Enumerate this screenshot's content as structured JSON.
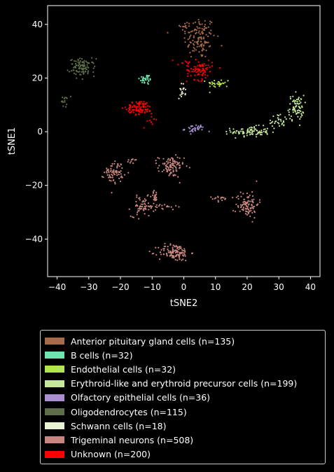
{
  "chart_data": {
    "type": "scatter",
    "xlabel": "tSNE2",
    "ylabel": "tSNE1",
    "xlim": [
      -43,
      43
    ],
    "ylim": [
      -54,
      47
    ],
    "xticks": [
      -40,
      -30,
      -20,
      -10,
      0,
      10,
      20,
      30,
      40
    ],
    "yticks": [
      -40,
      -20,
      0,
      20,
      40
    ],
    "legend_position": "below",
    "series": [
      {
        "name": "Anterior pituitary gland cells (n=135)",
        "color": "#a86b4a",
        "n": 135,
        "clusters": [
          {
            "x": 5,
            "y": 35,
            "sx": 2.5,
            "sy": 4.0,
            "n": 125
          },
          {
            "x": 0,
            "y": 39,
            "sx": 0.7,
            "sy": 1.2,
            "n": 10
          }
        ]
      },
      {
        "name": "B cells (n=32)",
        "color": "#6fe6b0",
        "n": 32,
        "clusters": [
          {
            "x": -12,
            "y": 19.5,
            "sx": 1.0,
            "sy": 1.0,
            "n": 32
          }
        ]
      },
      {
        "name": "Endothelial cells (n=32)",
        "color": "#b3e64c",
        "n": 32,
        "clusters": [
          {
            "x": 11,
            "y": 18,
            "sx": 1.8,
            "sy": 0.8,
            "n": 32
          }
        ]
      },
      {
        "name": "Erythroid-like and erythroid precursor cells (n=199)",
        "color": "#c5e89a",
        "n": 199,
        "clusters": [
          {
            "x": 21,
            "y": 0,
            "sx": 3.0,
            "sy": 1.0,
            "n": 95
          },
          {
            "x": 30,
            "y": 4,
            "sx": 2.0,
            "sy": 1.2,
            "n": 30
          },
          {
            "x": 35.5,
            "y": 9,
            "sx": 1.2,
            "sy": 2.3,
            "n": 74
          }
        ]
      },
      {
        "name": "Olfactory epithelial cells (n=36)",
        "color": "#a98fcf",
        "n": 36,
        "clusters": [
          {
            "x": 3.5,
            "y": 1,
            "sx": 1.6,
            "sy": 0.8,
            "n": 36
          }
        ]
      },
      {
        "name": "Oligodendrocytes (n=115)",
        "color": "#5e6e48",
        "n": 115,
        "clusters": [
          {
            "x": -32,
            "y": 24,
            "sx": 2.0,
            "sy": 1.6,
            "n": 100
          },
          {
            "x": -37.5,
            "y": 11.5,
            "sx": 0.6,
            "sy": 1.2,
            "n": 15
          }
        ]
      },
      {
        "name": "Schwann cells (n=18)",
        "color": "#e8f3d0",
        "n": 18,
        "clusters": [
          {
            "x": -0.5,
            "y": 15,
            "sx": 0.5,
            "sy": 1.4,
            "n": 18
          }
        ]
      },
      {
        "name": "Trigeminal neurons (n=508)",
        "color": "#c98680",
        "n": 508,
        "clusters": [
          {
            "x": -22,
            "y": -15,
            "sx": 1.5,
            "sy": 2.0,
            "n": 70
          },
          {
            "x": -4,
            "y": -13,
            "sx": 2.0,
            "sy": 2.0,
            "n": 95
          },
          {
            "x": -13,
            "y": -28,
            "sx": 1.8,
            "sy": 1.8,
            "n": 65
          },
          {
            "x": -6,
            "y": -28,
            "sx": 2.0,
            "sy": 0.6,
            "n": 18
          },
          {
            "x": 20,
            "y": -27,
            "sx": 1.8,
            "sy": 2.5,
            "n": 95
          },
          {
            "x": 12,
            "y": -25,
            "sx": 1.5,
            "sy": 0.5,
            "n": 15
          },
          {
            "x": -3,
            "y": -45,
            "sx": 2.5,
            "sy": 1.6,
            "n": 120
          },
          {
            "x": -16,
            "y": -11,
            "sx": 1.0,
            "sy": 0.6,
            "n": 10
          },
          {
            "x": -9,
            "y": -24,
            "sx": 0.6,
            "sy": 1.0,
            "n": 20
          }
        ]
      },
      {
        "name": "Unknown (n=200)",
        "color": "#ff0000",
        "n": 200,
        "clusters": [
          {
            "x": -14,
            "y": 9,
            "sx": 2.0,
            "sy": 1.3,
            "n": 95
          },
          {
            "x": 5,
            "y": 23,
            "sx": 2.0,
            "sy": 1.8,
            "n": 85
          },
          {
            "x": 0,
            "y": 26,
            "sx": 1.5,
            "sy": 0.6,
            "n": 10
          },
          {
            "x": -10,
            "y": 4,
            "sx": 0.8,
            "sy": 1.2,
            "n": 10
          }
        ]
      }
    ]
  }
}
